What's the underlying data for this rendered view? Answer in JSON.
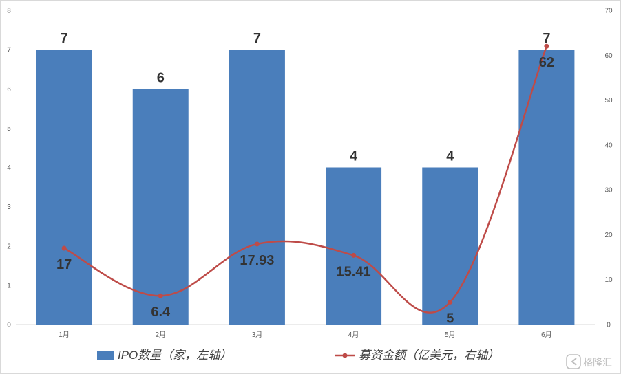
{
  "chart_data": {
    "type": "bar",
    "categories": [
      "1月",
      "2月",
      "3月",
      "4月",
      "5月",
      "6月"
    ],
    "series": [
      {
        "name": "IPO数量（家，左轴）",
        "type": "bar",
        "axis": "left",
        "values": [
          7,
          6,
          7,
          4,
          4,
          7
        ],
        "labels": [
          "7",
          "6",
          "7",
          "4",
          "4",
          "7"
        ],
        "color": "#4a7ebb"
      },
      {
        "name": "募资金额（亿美元，右轴）",
        "type": "line",
        "axis": "right",
        "smooth": true,
        "values": [
          17,
          6.4,
          17.93,
          15.41,
          5,
          62
        ],
        "labels": [
          "17",
          "6.4",
          "17.93",
          "15.41",
          "5",
          "62"
        ],
        "color": "#be4b48"
      }
    ],
    "y_left": {
      "min": 0,
      "max": 8,
      "ticks": [
        "0",
        "1",
        "2",
        "3",
        "4",
        "5",
        "6",
        "7",
        "8"
      ]
    },
    "y_right": {
      "min": 0,
      "max": 70,
      "ticks": [
        "0",
        "10",
        "20",
        "30",
        "40",
        "50",
        "60",
        "70"
      ]
    },
    "grid": false,
    "legend_position": "bottom"
  },
  "watermark": {
    "text": "格隆汇",
    "icon": "gelonghui-logo-icon"
  }
}
